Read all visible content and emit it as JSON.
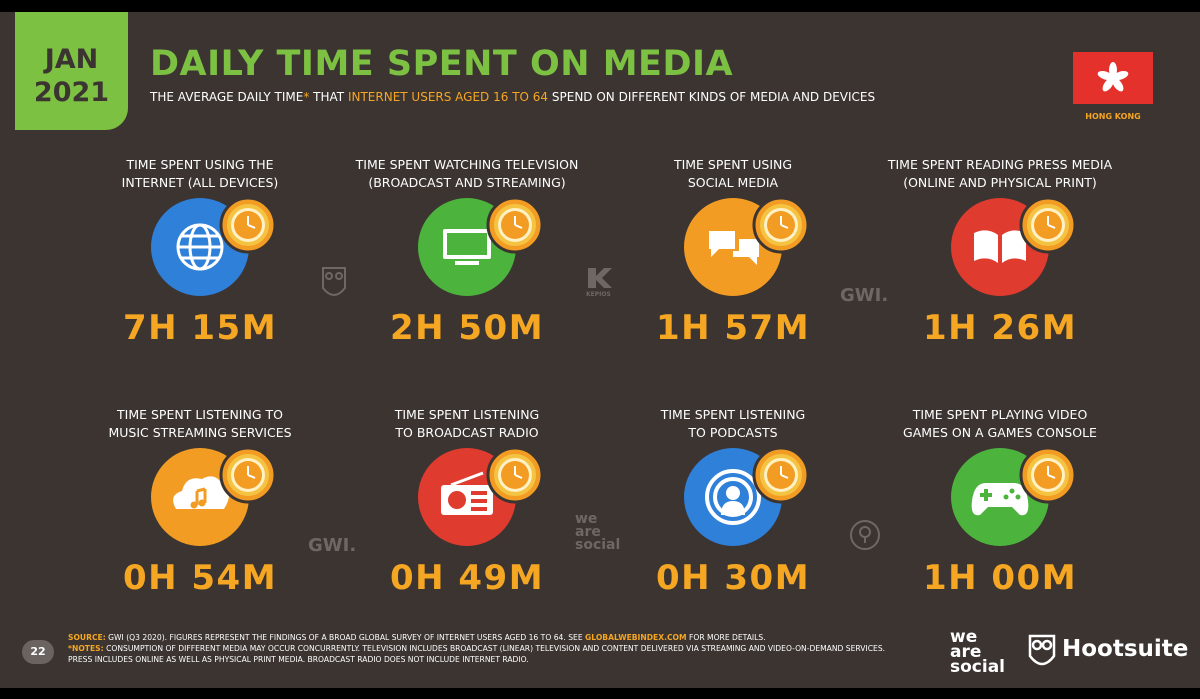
{
  "header": {
    "badge_month": "JAN",
    "badge_year": "2021",
    "title": "DAILY TIME SPENT ON MEDIA",
    "subtitle": [
      "THE AVERAGE DAILY TIME",
      "*",
      " THAT ",
      "INTERNET USERS AGED 16 TO 64",
      " SPEND ON DIFFERENT KINDS OF MEDIA AND DEVICES"
    ]
  },
  "country": "HONG KONG",
  "tiles": [
    {
      "label": [
        "TIME SPENT USING THE",
        "INTERNET (ALL DEVICES)"
      ],
      "value": "7H 15M"
    },
    {
      "label": [
        "TIME SPENT WATCHING TELEVISION",
        "(BROADCAST AND STREAMING)"
      ],
      "value": "2H 50M"
    },
    {
      "label": [
        "TIME SPENT USING",
        "SOCIAL MEDIA"
      ],
      "value": "1H 57M"
    },
    {
      "label": [
        "TIME SPENT READING PRESS MEDIA",
        "(ONLINE AND PHYSICAL PRINT)"
      ],
      "value": "1H 26M"
    },
    {
      "label": [
        "TIME SPENT LISTENING TO",
        "MUSIC STREAMING SERVICES"
      ],
      "value": "0H 54M"
    },
    {
      "label": [
        "TIME SPENT LISTENING",
        "TO BROADCAST RADIO"
      ],
      "value": "0H 49M"
    },
    {
      "label": [
        "TIME SPENT LISTENING",
        "TO PODCASTS"
      ],
      "value": "0H 30M"
    },
    {
      "label": [
        "TIME SPENT PLAYING VIDEO",
        "GAMES ON A GAMES CONSOLE"
      ],
      "value": "1H 00M"
    }
  ],
  "watermarks": [
    "KEPIOS",
    "GWI.",
    "GWI.",
    "we",
    "are",
    "social"
  ],
  "footer": {
    "page": "22",
    "source_label": "SOURCE:",
    "source_text": " GWI (Q3 2020). FIGURES REPRESENT THE FINDINGS OF A BROAD GLOBAL SURVEY OF INTERNET USERS AGED 16 TO 64. SEE ",
    "source_link": "GLOBALWEBINDEX.COM",
    "source_end": " FOR MORE DETAILS.",
    "notes_label": "*NOTES:",
    "notes_text": " CONSUMPTION OF DIFFERENT MEDIA MAY OCCUR CONCURRENTLY. TELEVISION INCLUDES BROADCAST (LINEAR) TELEVISION AND CONTENT DELIVERED VIA STREAMING AND VIDEO-ON-DEMAND SERVICES. PRESS INCLUDES ONLINE AS WELL AS PHYSICAL PRINT MEDIA. BROADCAST RADIO DOES NOT INCLUDE INTERNET RADIO.",
    "logos": [
      "we",
      "are",
      "social",
      "Hootsuite"
    ]
  }
}
